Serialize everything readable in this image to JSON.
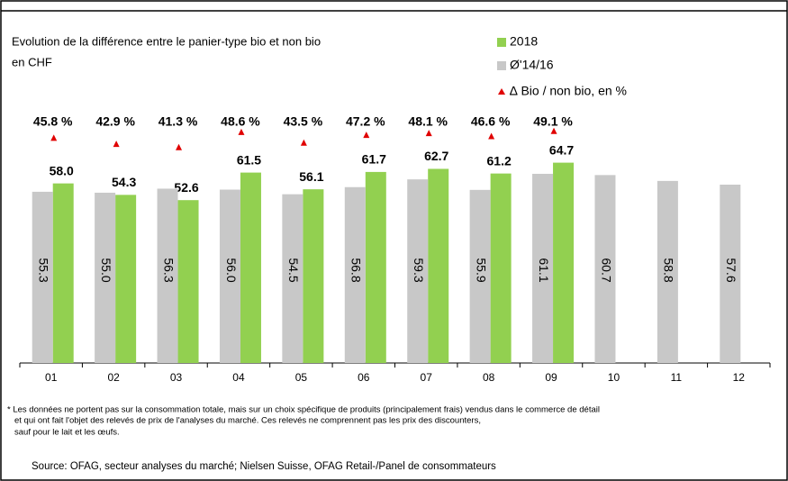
{
  "chart_data": {
    "type": "bar",
    "title": [
      "Evolution de la différence entre le panier-type bio et non bio",
      "en CHF"
    ],
    "categories": [
      "01",
      "02",
      "03",
      "04",
      "05",
      "06",
      "07",
      "08",
      "09",
      "10",
      "11",
      "12"
    ],
    "ylim": [
      0,
      80
    ],
    "y2lim": [
      20,
      100
    ],
    "series": [
      {
        "name": "2018",
        "color": "#92d050",
        "values": [
          58.0,
          54.3,
          52.6,
          61.5,
          56.1,
          61.7,
          62.7,
          61.2,
          64.7,
          null,
          null,
          null
        ],
        "value_labels": [
          "58.0",
          "54.3",
          "52.6",
          "61.5",
          "56.1",
          "61.7",
          "62.7",
          "61.2",
          "64.7",
          null,
          null,
          null
        ]
      },
      {
        "name": "Ø'14/16",
        "color": "#c8c8c8",
        "values": [
          55.3,
          55.0,
          56.3,
          56.0,
          54.5,
          56.8,
          59.3,
          55.9,
          61.1,
          60.7,
          58.8,
          57.6
        ],
        "value_labels": [
          "55.3",
          "55.0",
          "56.3",
          "56.0",
          "54.5",
          "56.8",
          "59.3",
          "55.9",
          "61.1",
          "60.7",
          "58.8",
          "57.6"
        ]
      },
      {
        "name": "∆ Bio / non bio, en %",
        "color": "#e00000",
        "axis": "y2",
        "values": [
          45.8,
          42.9,
          41.3,
          48.6,
          43.5,
          47.2,
          48.1,
          46.6,
          49.1,
          null,
          null,
          null
        ],
        "value_labels": [
          "45.8 %",
          "42.9 %",
          "41.3 %",
          "48.6 %",
          "43.5 %",
          "47.2 %",
          "48.1 %",
          "46.6 %",
          "49.1 %",
          null,
          null,
          null
        ]
      }
    ],
    "footnote": [
      "* Les données ne portent pas sur la consommation totale, mais sur un choix spécifique de produits (principalement frais) vendus dans le commerce de détail",
      "et qui ont fait l'objet des relevés de prix de l'analyses du marché. Ces relevés ne comprennent pas les prix des discounters,",
      "sauf pour le lait et les œufs."
    ],
    "source": "Source: OFAG, secteur analyses du marché; Nielsen Suisse, OFAG Retail-/Panel de consommateurs"
  }
}
